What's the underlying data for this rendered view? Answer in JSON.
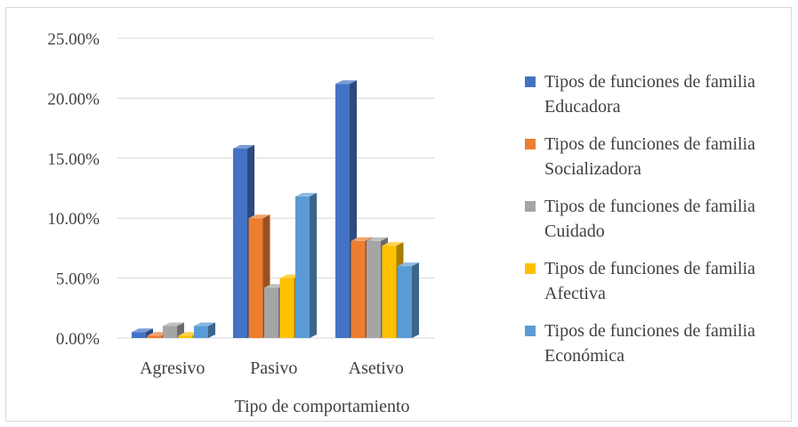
{
  "chart_data": {
    "type": "bar",
    "style": "3d-clustered-column",
    "xlabel": "Tipo de comportamiento",
    "ylabel": "",
    "ylim": [
      0,
      0.25
    ],
    "yticks": [
      "0.00%",
      "5.00%",
      "10.00%",
      "15.00%",
      "20.00%",
      "25.00%"
    ],
    "grid": true,
    "legend_position": "right",
    "categories": [
      "Agresivo",
      "Pasivo",
      "Asetivo"
    ],
    "series": [
      {
        "name": "Tipos de funciones de familia Educadora",
        "color": "#4472C4",
        "values": [
          0.005,
          0.158,
          0.212
        ]
      },
      {
        "name": "Tipos de funciones de familia Socializadora",
        "color": "#ED7D31",
        "values": [
          0.002,
          0.1,
          0.081
        ]
      },
      {
        "name": "Tipos de funciones de familia Cuidado",
        "color": "#A5A5A5",
        "values": [
          0.01,
          0.042,
          0.081
        ]
      },
      {
        "name": "Tipos de funciones de familia Afectiva",
        "color": "#FFC000",
        "values": [
          0.002,
          0.05,
          0.077
        ]
      },
      {
        "name": "Tipos de funciones de familia Económica",
        "color": "#5B9BD5",
        "values": [
          0.01,
          0.118,
          0.06
        ]
      }
    ]
  }
}
